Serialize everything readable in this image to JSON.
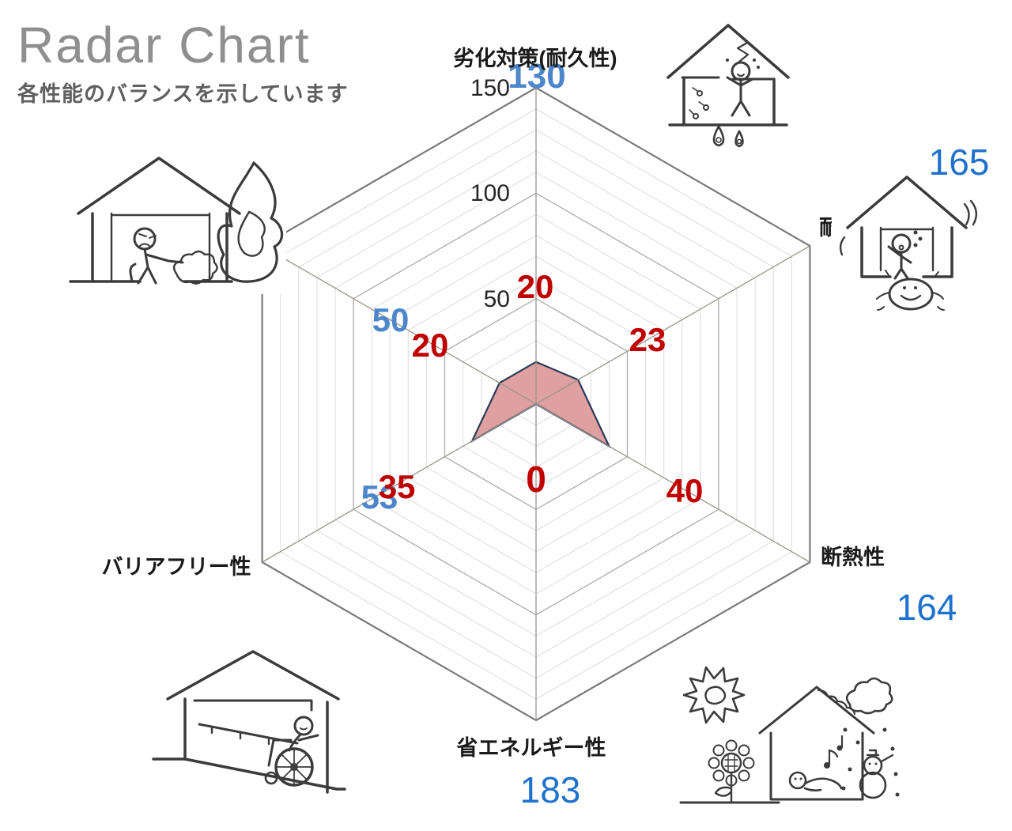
{
  "header": {
    "title": "Radar Chart",
    "subtitle": "各性能のバランスを示しています"
  },
  "chart_data": {
    "type": "radar",
    "axis_max": 150,
    "grid_step": 10,
    "major_ticks": [
      50,
      100,
      150
    ],
    "axes": [
      {
        "label": "劣化対策(耐久性)"
      },
      {
        "label": "耐"
      },
      {
        "label": "断熱性"
      },
      {
        "label": "省エネルギー性"
      },
      {
        "label": "バリアフリー性"
      },
      {
        "label": ""
      }
    ],
    "series": [
      {
        "name": "current-performance",
        "fill": "#4E81C4",
        "outline": "#1C3A5E",
        "values": [
          130,
          165,
          164,
          183,
          53,
          50
        ],
        "label_color_bright": "#1E72CC",
        "label_color_bold": "#4C86CB"
      },
      {
        "name": "reference-performance",
        "fill": "#DFA0A2",
        "outline": "#2B3A55",
        "values": [
          20,
          23,
          40,
          0,
          35,
          20
        ],
        "label_color": "#C00000"
      }
    ],
    "grid": {
      "minor_color": "#DCDCDC",
      "major_color": "#ACACAC",
      "outer_color": "#7A7A7A",
      "spoke_color": "#9B948B",
      "tick_label_color": "#262626",
      "axis_label_color": "#1A1A1A"
    }
  },
  "illustrations": [
    {
      "name": "deterioration-durability-house-illustration"
    },
    {
      "name": "earthquake-resistance-house-illustration"
    },
    {
      "name": "fire-resistance-house-illustration"
    },
    {
      "name": "barrier-free-wheelchair-house-illustration"
    },
    {
      "name": "insulation-energy-saving-house-illustration"
    }
  ]
}
